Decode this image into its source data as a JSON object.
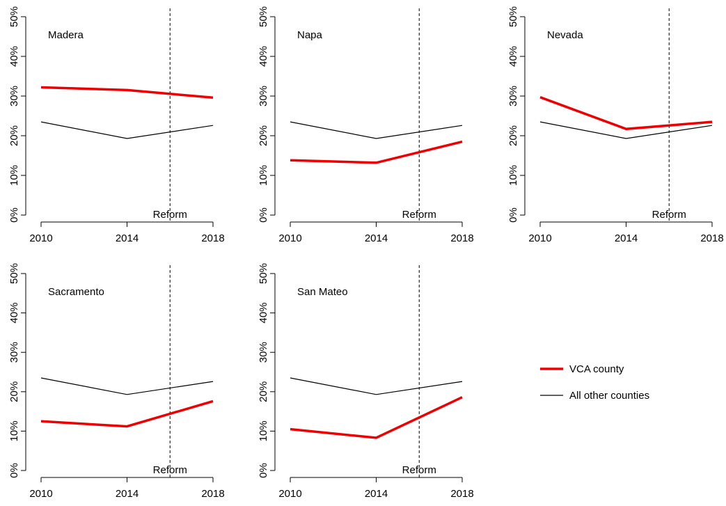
{
  "chart_data": {
    "type": "line",
    "x_ticks": [
      "2010",
      "2014",
      "2018"
    ],
    "y_ticks": [
      "0%",
      "10%",
      "20%",
      "30%",
      "40%",
      "50%"
    ],
    "ylim": [
      0,
      50
    ],
    "xlim": [
      2010,
      2018
    ],
    "reform_year": 2016,
    "reform_label": "Reform",
    "grid": false,
    "legend_position": "right",
    "legend": [
      {
        "label": "VCA county",
        "color": "#ee0000",
        "style": "thick"
      },
      {
        "label": "All other counties",
        "color": "#000000",
        "style": "thin"
      }
    ],
    "panels": [
      {
        "title": "Madera",
        "series": [
          {
            "name": "VCA county",
            "x": [
              2010,
              2014,
              2018
            ],
            "y": [
              32.2,
              31.5,
              29.6
            ]
          },
          {
            "name": "All other counties",
            "x": [
              2010,
              2014,
              2018
            ],
            "y": [
              23.5,
              19.3,
              22.6
            ]
          }
        ]
      },
      {
        "title": "Napa",
        "series": [
          {
            "name": "VCA county",
            "x": [
              2010,
              2014,
              2018
            ],
            "y": [
              13.8,
              13.2,
              18.5
            ]
          },
          {
            "name": "All other counties",
            "x": [
              2010,
              2014,
              2018
            ],
            "y": [
              23.5,
              19.3,
              22.6
            ]
          }
        ]
      },
      {
        "title": "Nevada",
        "series": [
          {
            "name": "VCA county",
            "x": [
              2010,
              2014,
              2018
            ],
            "y": [
              29.7,
              21.7,
              23.5
            ]
          },
          {
            "name": "All other counties",
            "x": [
              2010,
              2014,
              2018
            ],
            "y": [
              23.5,
              19.3,
              22.6
            ]
          }
        ]
      },
      {
        "title": "Sacramento",
        "series": [
          {
            "name": "VCA county",
            "x": [
              2010,
              2014,
              2018
            ],
            "y": [
              12.5,
              11.2,
              17.6
            ]
          },
          {
            "name": "All other counties",
            "x": [
              2010,
              2014,
              2018
            ],
            "y": [
              23.5,
              19.3,
              22.6
            ]
          }
        ]
      },
      {
        "title": "San Mateo",
        "series": [
          {
            "name": "VCA county",
            "x": [
              2010,
              2014,
              2018
            ],
            "y": [
              10.5,
              8.3,
              18.6
            ]
          },
          {
            "name": "All other counties",
            "x": [
              2010,
              2014,
              2018
            ],
            "y": [
              23.5,
              19.3,
              22.6
            ]
          }
        ]
      }
    ]
  }
}
